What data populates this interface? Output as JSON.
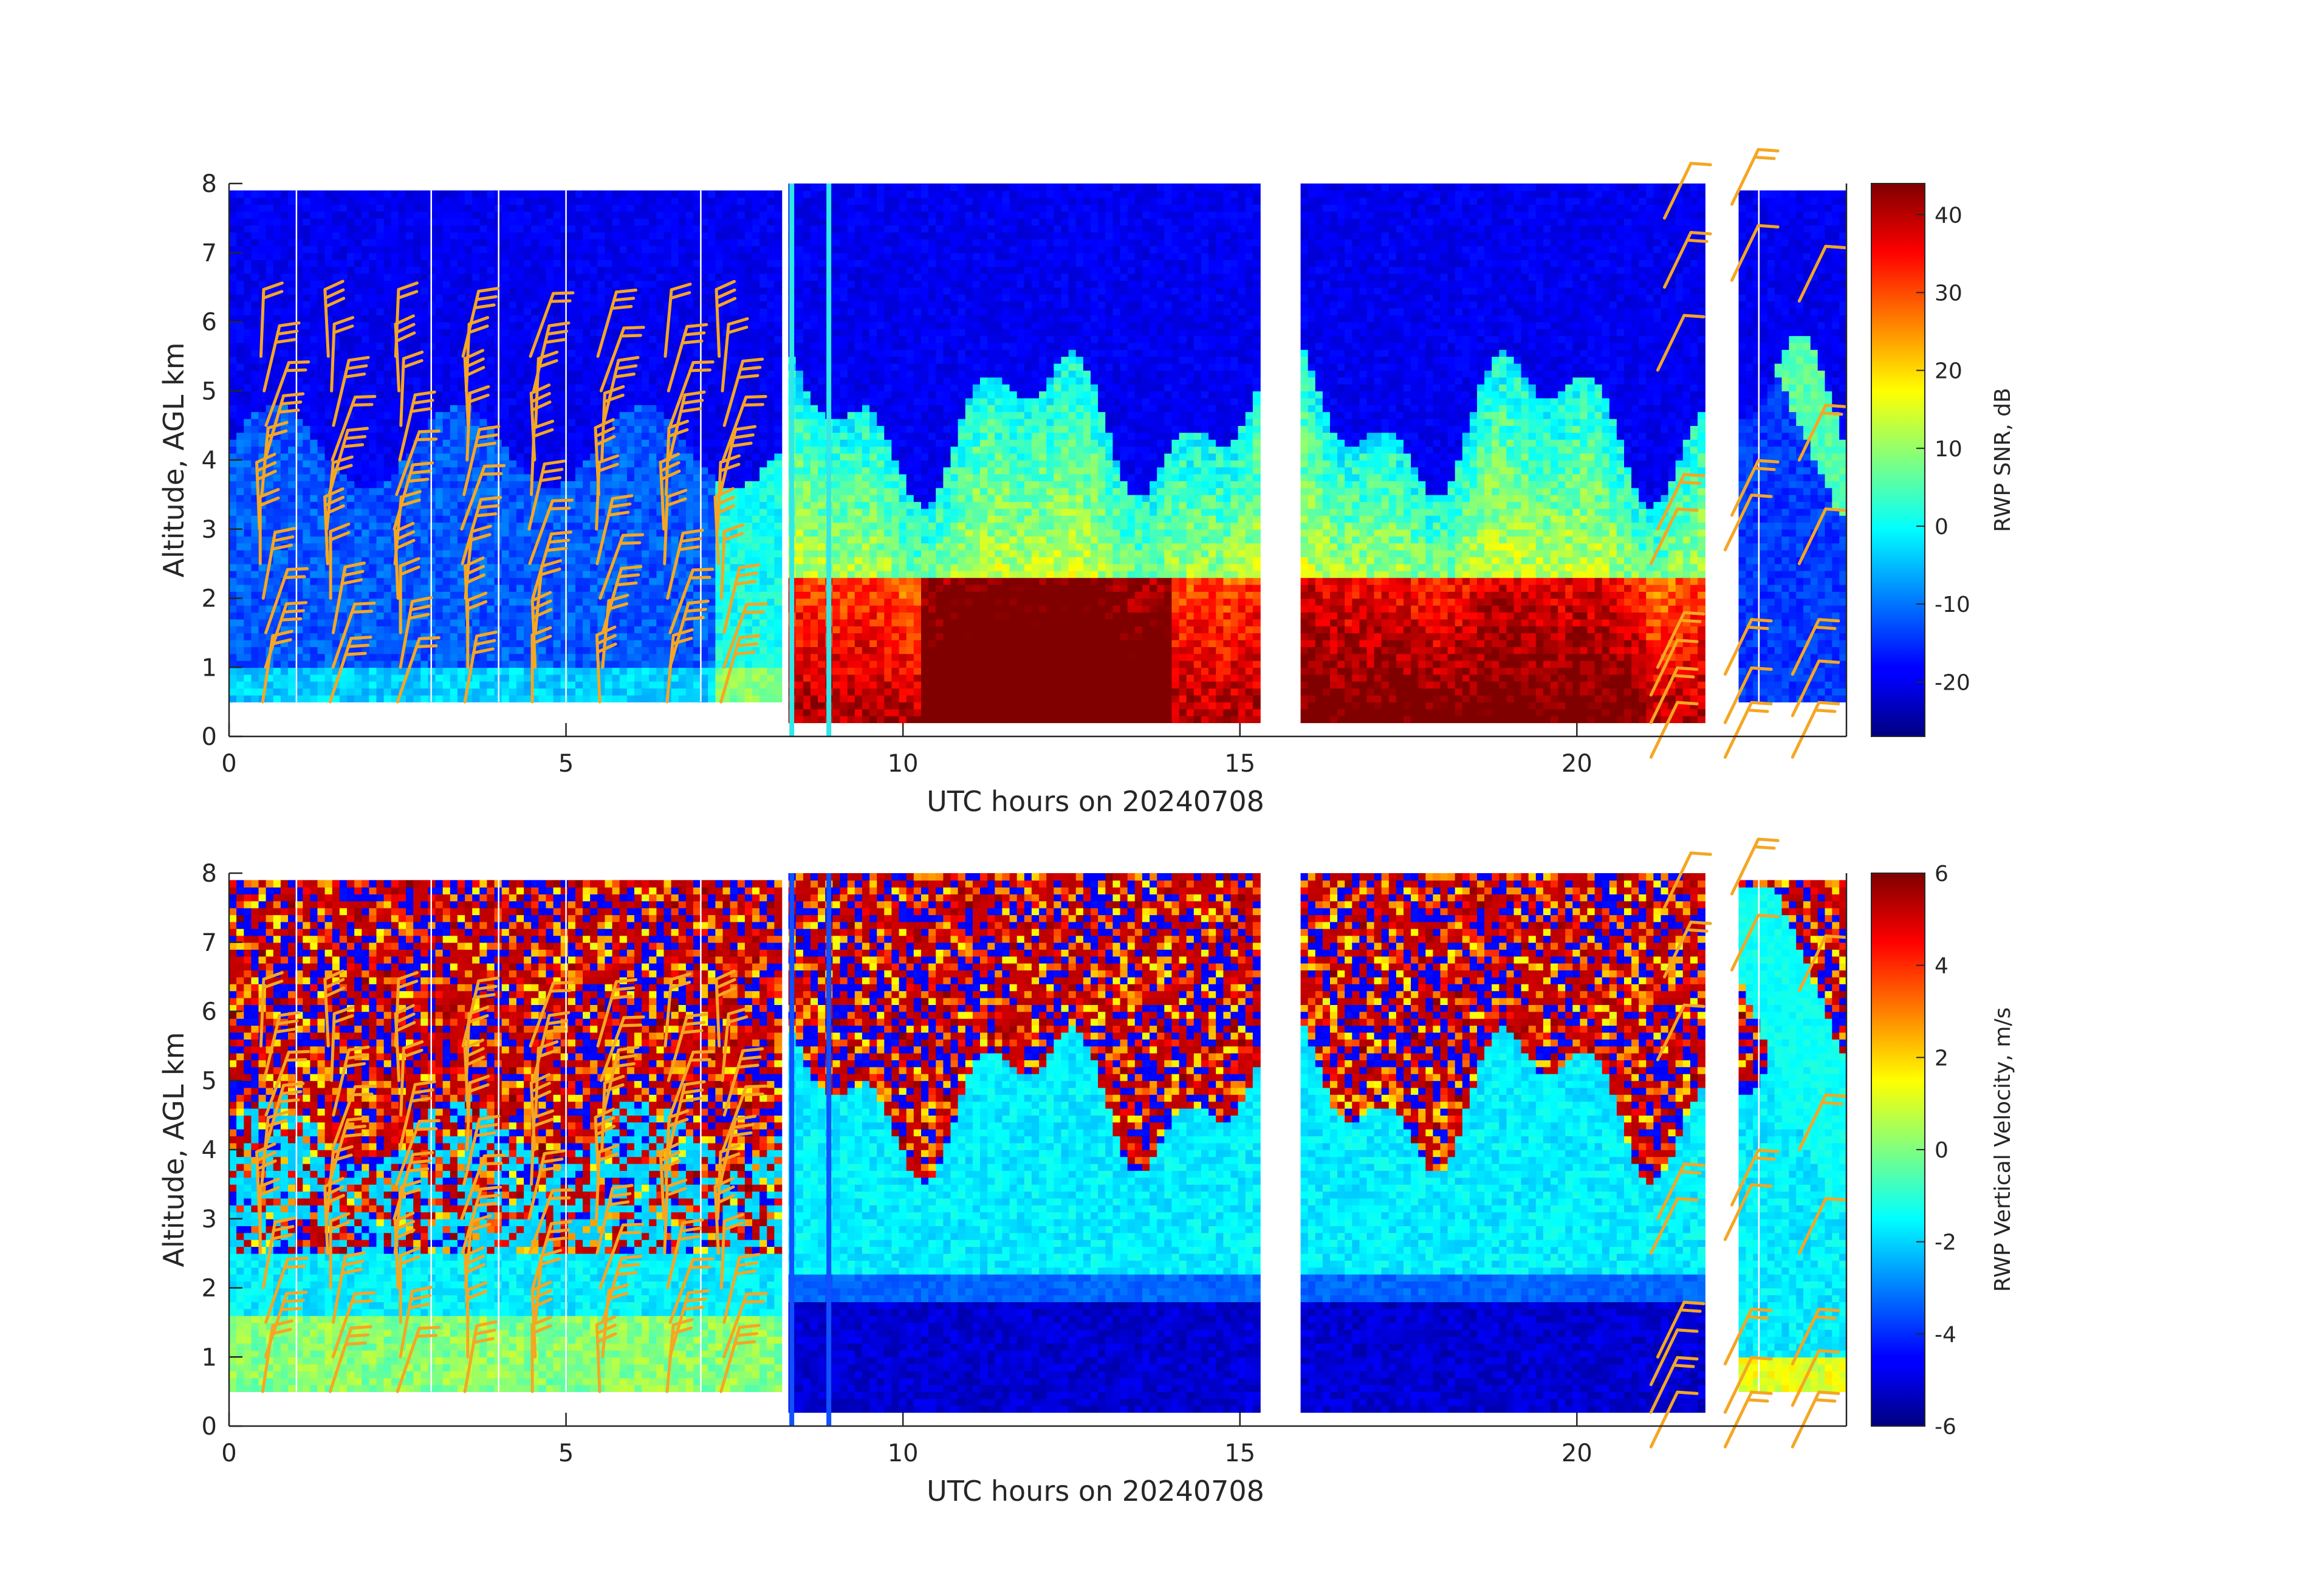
{
  "chart_data": [
    {
      "type": "heatmap",
      "xlabel": "UTC hours on 20240708",
      "ylabel": "Altitude, AGL km",
      "xlim": [
        0,
        24
      ],
      "ylim": [
        0,
        8
      ],
      "xticks": [
        "0",
        "5",
        "10",
        "15",
        "20"
      ],
      "yticks": [
        "0",
        "1",
        "2",
        "3",
        "4",
        "5",
        "6",
        "7",
        "8"
      ],
      "colorbar": {
        "label": "RWP SNR, dB",
        "range": [
          -27,
          44
        ],
        "ticks": [
          "-20",
          "-10",
          "0",
          "10",
          "20",
          "30",
          "40"
        ],
        "colormap": "jet"
      },
      "data_segments": [
        {
          "x": [
            0,
            8.2
          ],
          "y": [
            0.5,
            7.9
          ]
        },
        {
          "x": [
            8.3,
            15.3
          ],
          "y": [
            0.2,
            8.0
          ]
        },
        {
          "x": [
            15.9,
            21.9
          ],
          "y": [
            0.2,
            8.0
          ]
        },
        {
          "x": [
            22.4,
            24
          ],
          "y": [
            0.5,
            7.9
          ]
        }
      ],
      "features": {
        "max_snr_layer_km": [
          0.2,
          2.3
        ],
        "max_snr_hours": [
          10.5,
          14
        ]
      },
      "wind_barbs_color": "#f5a623"
    },
    {
      "type": "heatmap",
      "xlabel": "UTC hours on 20240708",
      "ylabel": "Altitude, AGL km",
      "xlim": [
        0,
        24
      ],
      "ylim": [
        0,
        8
      ],
      "xticks": [
        "0",
        "5",
        "10",
        "15",
        "20"
      ],
      "yticks": [
        "0",
        "1",
        "2",
        "3",
        "4",
        "5",
        "6",
        "7",
        "8"
      ],
      "colorbar": {
        "label": "RWP Vertical Velocity, m/s",
        "range": [
          -6,
          6
        ],
        "ticks": [
          "-6",
          "-4",
          "-2",
          "0",
          "2",
          "4",
          "6"
        ],
        "colormap": "jet"
      },
      "data_segments": [
        {
          "x": [
            0,
            8.2
          ],
          "y": [
            0.5,
            7.9
          ]
        },
        {
          "x": [
            8.3,
            15.3
          ],
          "y": [
            0.2,
            8.0
          ]
        },
        {
          "x": [
            15.9,
            21.9
          ],
          "y": [
            0.2,
            8.0
          ]
        },
        {
          "x": [
            22.4,
            24
          ],
          "y": [
            0.5,
            7.9
          ]
        }
      ],
      "wind_barbs_color": "#f5a623"
    }
  ]
}
